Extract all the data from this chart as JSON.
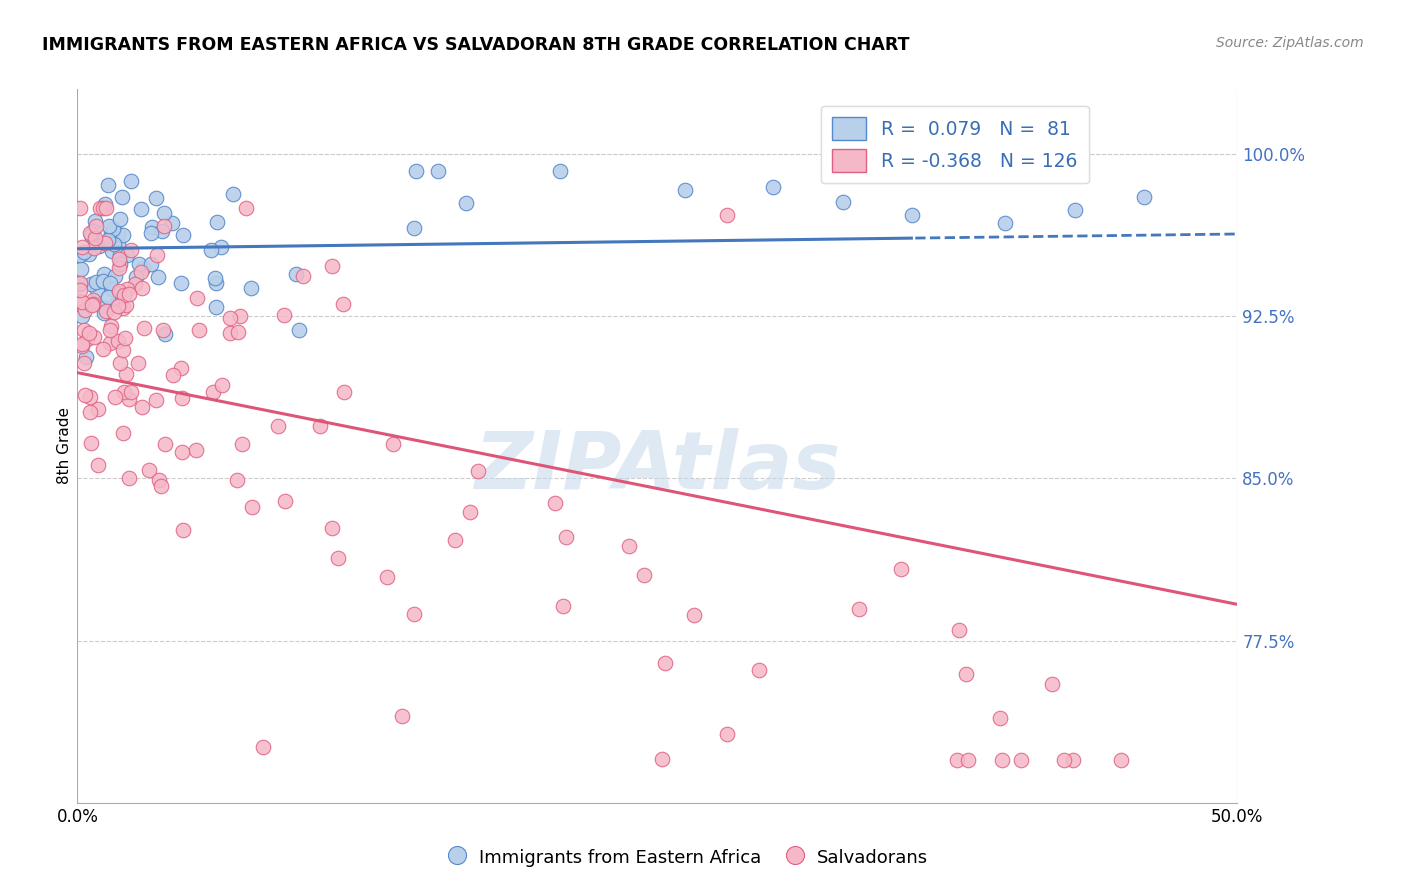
{
  "title": "IMMIGRANTS FROM EASTERN AFRICA VS SALVADORAN 8TH GRADE CORRELATION CHART",
  "source": "Source: ZipAtlas.com",
  "ylabel": "8th Grade",
  "xlim": [
    0.0,
    0.5
  ],
  "ylim": [
    0.7,
    1.03
  ],
  "yticks": [
    0.775,
    0.85,
    0.925,
    1.0
  ],
  "ytick_labels": [
    "77.5%",
    "85.0%",
    "92.5%",
    "100.0%"
  ],
  "blue_R": 0.079,
  "blue_N": 81,
  "pink_R": -0.368,
  "pink_N": 126,
  "blue_fill": "#b8d0ea",
  "pink_fill": "#f5b8c8",
  "blue_edge": "#5588cc",
  "pink_edge": "#e06080",
  "blue_line_color": "#4477bb",
  "pink_line_color": "#dd5577",
  "watermark": "ZIPAtlas",
  "legend_label_blue": "Immigrants from Eastern Africa",
  "legend_label_pink": "Salvadorans"
}
